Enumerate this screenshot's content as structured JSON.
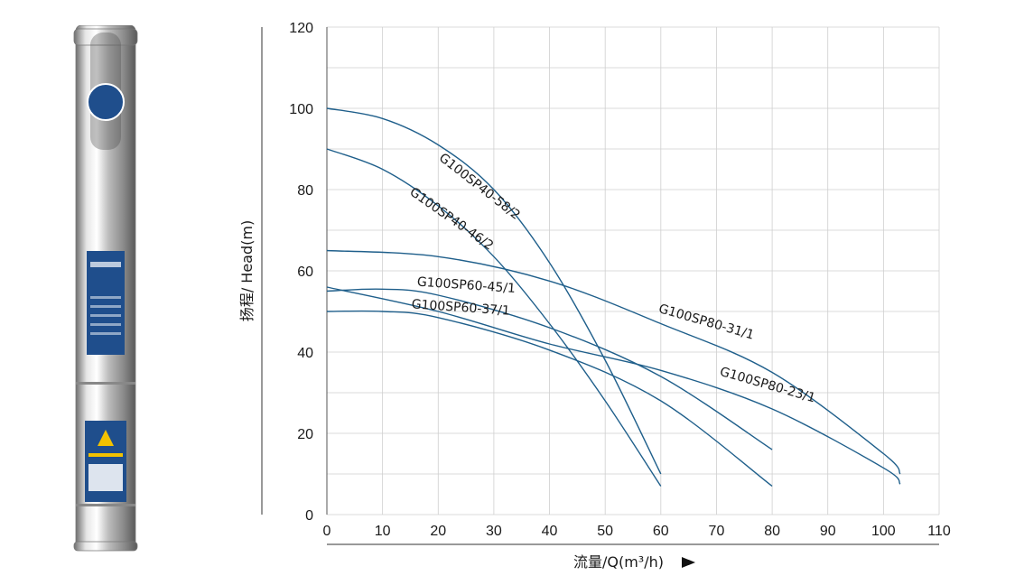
{
  "chart_data": {
    "type": "line",
    "title": "",
    "xlabel": "流量/Q(m³/h)",
    "ylabel": "扬程/ Head(m)",
    "xlim": [
      0,
      110
    ],
    "ylim": [
      0,
      120
    ],
    "x_ticks": [
      0,
      10,
      20,
      30,
      40,
      50,
      60,
      70,
      80,
      90,
      100,
      110
    ],
    "y_ticks": [
      0,
      20,
      40,
      60,
      80,
      100,
      120
    ],
    "grid": true,
    "line_color": "#1f5f8b",
    "series": [
      {
        "name": "G100SP40-58/2",
        "x": [
          0,
          10,
          20,
          30,
          40,
          50,
          60
        ],
        "y": [
          100,
          97.5,
          91,
          80,
          62,
          38,
          10
        ]
      },
      {
        "name": "G100SP40-46/2",
        "x": [
          0,
          10,
          20,
          30,
          40,
          50,
          60
        ],
        "y": [
          90,
          85,
          76,
          63.5,
          47,
          28,
          7
        ]
      },
      {
        "name": "G100SP80-31/1",
        "x": [
          0,
          20,
          40,
          60,
          80,
          100,
          103
        ],
        "y": [
          65,
          63.5,
          57.5,
          47,
          35,
          15,
          10
        ]
      },
      {
        "name": "G100SP80-23/1",
        "x": [
          0,
          20,
          40,
          60,
          80,
          100,
          103
        ],
        "y": [
          56,
          50,
          42,
          35.5,
          26,
          11.5,
          7.5
        ]
      },
      {
        "name": "G100SP60-45/1",
        "x": [
          0,
          10,
          20,
          40,
          60,
          80
        ],
        "y": [
          55,
          55.5,
          54,
          46,
          34,
          16
        ]
      },
      {
        "name": "G100SP60-37/1",
        "x": [
          0,
          10,
          20,
          40,
          60,
          80
        ],
        "y": [
          50,
          50,
          48.5,
          40.5,
          28,
          7
        ]
      }
    ]
  }
}
